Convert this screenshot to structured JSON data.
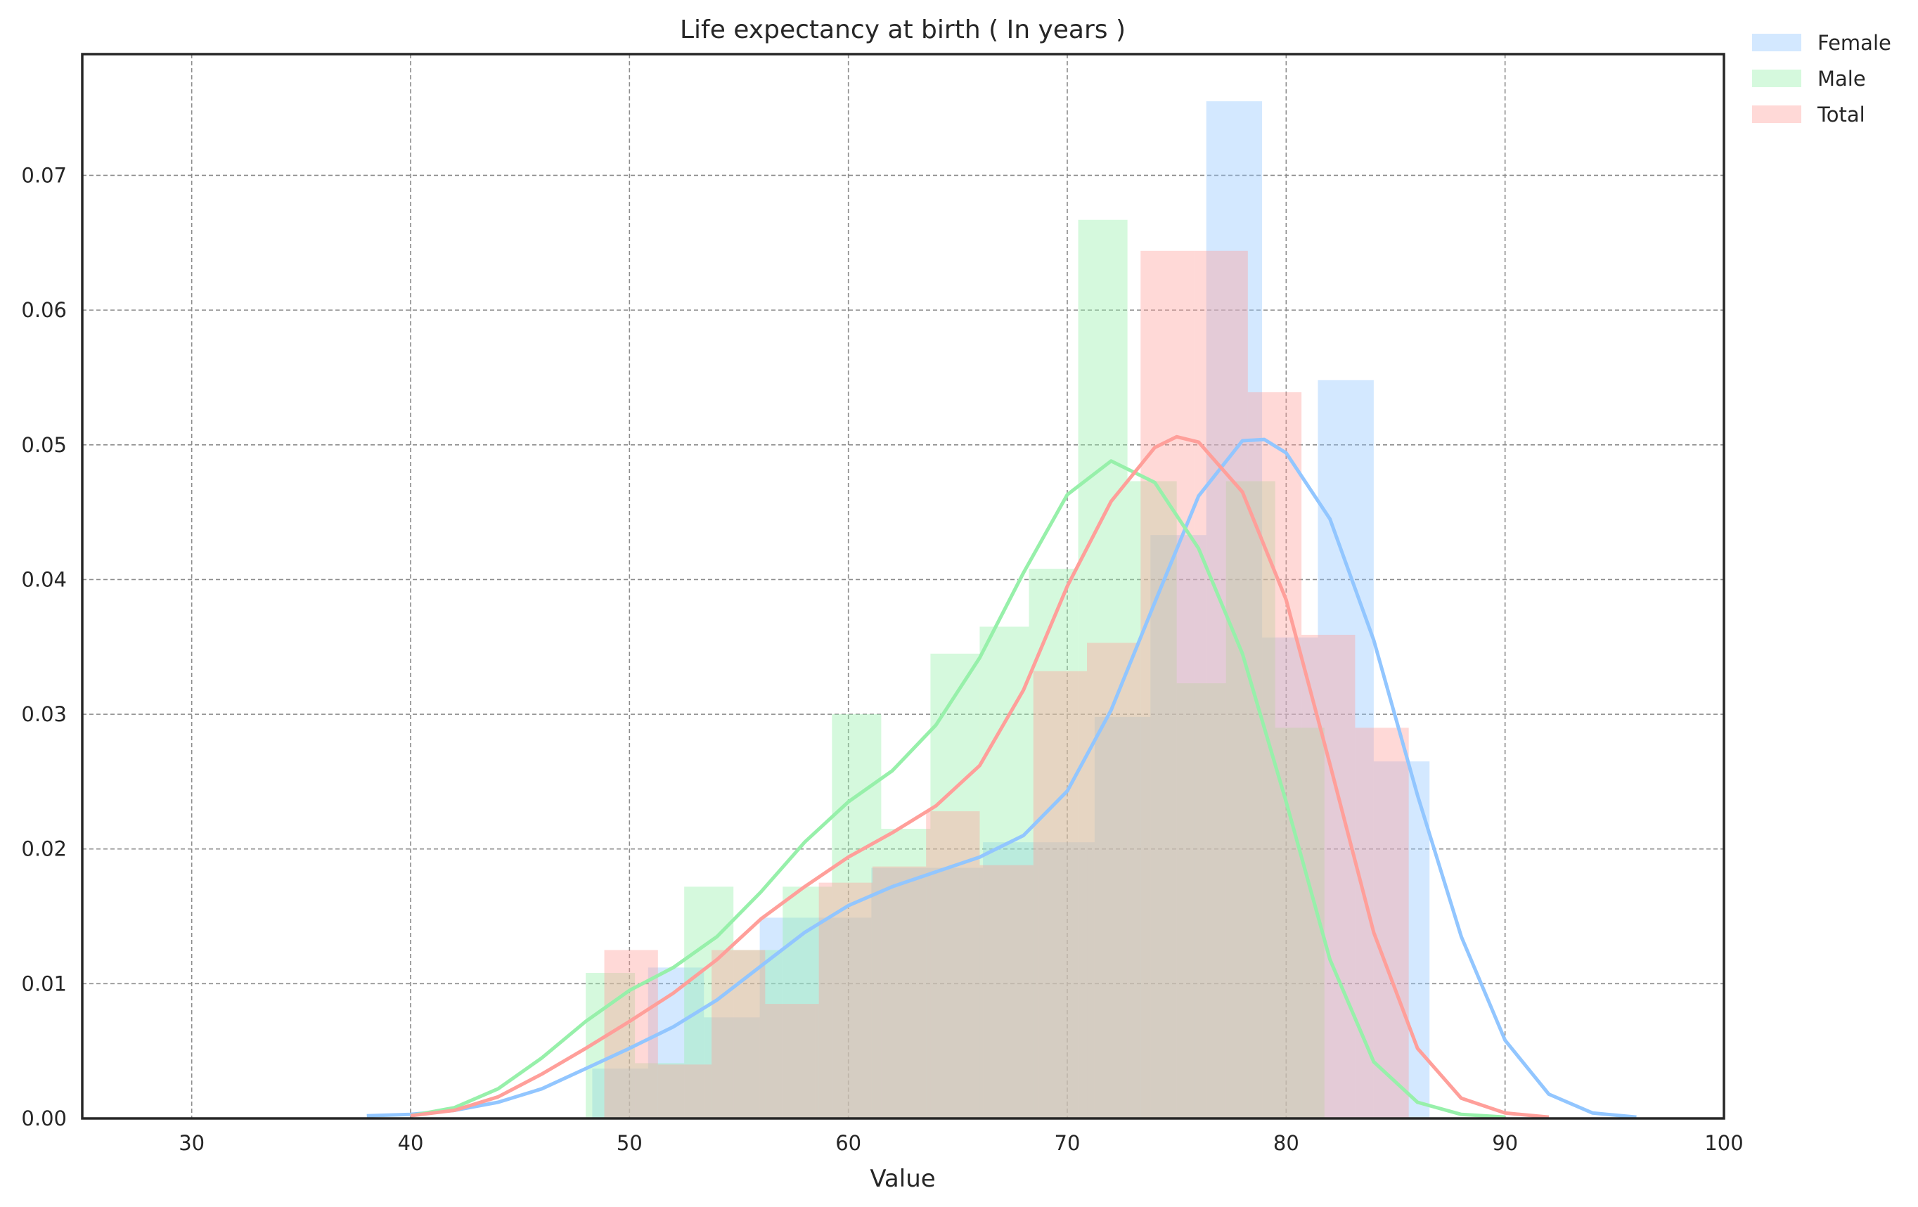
{
  "chart_data": {
    "type": "histogram+kde",
    "title": "Life expectancy at birth ( In years )",
    "xlabel": "Value",
    "ylabel": "",
    "xlim": [
      25,
      100
    ],
    "ylim": [
      0,
      0.079
    ],
    "x_ticks": [
      30,
      40,
      50,
      60,
      70,
      80,
      90,
      100
    ],
    "y_ticks": [
      0.0,
      0.01,
      0.02,
      0.03,
      0.04,
      0.05,
      0.06,
      0.07
    ],
    "y_tick_labels": [
      "0.00",
      "0.01",
      "0.02",
      "0.03",
      "0.04",
      "0.05",
      "0.06",
      "0.07"
    ],
    "grid": true,
    "legend_position": "outside-top-right",
    "series": [
      {
        "name": "Female",
        "color": "#92c6ff",
        "bar_width": 2.55,
        "bins": [
          {
            "x": 48.3,
            "height": 0.0037
          },
          {
            "x": 50.85,
            "height": 0.0112
          },
          {
            "x": 53.4,
            "height": 0.0075
          },
          {
            "x": 55.95,
            "height": 0.0149
          },
          {
            "x": 58.5,
            "height": 0.0149
          },
          {
            "x": 61.05,
            "height": 0.0186
          },
          {
            "x": 63.6,
            "height": 0.0186
          },
          {
            "x": 66.15,
            "height": 0.0205
          },
          {
            "x": 68.7,
            "height": 0.0205
          },
          {
            "x": 71.25,
            "height": 0.0298
          },
          {
            "x": 73.8,
            "height": 0.0433
          },
          {
            "x": 76.35,
            "height": 0.0755
          },
          {
            "x": 78.9,
            "height": 0.0357
          },
          {
            "x": 81.45,
            "height": 0.0548
          },
          {
            "x": 84.0,
            "height": 0.0265
          }
        ],
        "kde": [
          [
            38,
            0.0002
          ],
          [
            40,
            0.0003
          ],
          [
            42,
            0.0006
          ],
          [
            44,
            0.0012
          ],
          [
            46,
            0.0022
          ],
          [
            48,
            0.0037
          ],
          [
            50,
            0.0052
          ],
          [
            52,
            0.0068
          ],
          [
            54,
            0.0088
          ],
          [
            56,
            0.0113
          ],
          [
            58,
            0.0138
          ],
          [
            60,
            0.0158
          ],
          [
            62,
            0.0172
          ],
          [
            64,
            0.0183
          ],
          [
            66,
            0.0194
          ],
          [
            68,
            0.021
          ],
          [
            70,
            0.0243
          ],
          [
            72,
            0.0303
          ],
          [
            74,
            0.0383
          ],
          [
            76,
            0.0462
          ],
          [
            78,
            0.0503
          ],
          [
            79,
            0.0504
          ],
          [
            80,
            0.0494
          ],
          [
            82,
            0.0445
          ],
          [
            84,
            0.0355
          ],
          [
            86,
            0.024
          ],
          [
            88,
            0.0135
          ],
          [
            90,
            0.0058
          ],
          [
            92,
            0.0018
          ],
          [
            94,
            0.0004
          ],
          [
            96,
            0.0001
          ]
        ]
      },
      {
        "name": "Male",
        "color": "#97f0aa",
        "bar_width": 2.25,
        "bins": [
          {
            "x": 48.0,
            "height": 0.0108
          },
          {
            "x": 50.25,
            "height": 0.0041
          },
          {
            "x": 52.5,
            "height": 0.0172
          },
          {
            "x": 54.75,
            "height": 0.0125
          },
          {
            "x": 57.0,
            "height": 0.0172
          },
          {
            "x": 59.25,
            "height": 0.03
          },
          {
            "x": 61.5,
            "height": 0.0215
          },
          {
            "x": 63.75,
            "height": 0.0345
          },
          {
            "x": 66.0,
            "height": 0.0365
          },
          {
            "x": 68.25,
            "height": 0.0408
          },
          {
            "x": 70.5,
            "height": 0.0667
          },
          {
            "x": 72.75,
            "height": 0.0473
          },
          {
            "x": 75.0,
            "height": 0.0323
          },
          {
            "x": 77.25,
            "height": 0.0473
          },
          {
            "x": 79.5,
            "height": 0.029
          }
        ],
        "kde": [
          [
            40,
            0.0002
          ],
          [
            42,
            0.0008
          ],
          [
            44,
            0.0022
          ],
          [
            46,
            0.0045
          ],
          [
            48,
            0.0072
          ],
          [
            50,
            0.0095
          ],
          [
            52,
            0.0112
          ],
          [
            54,
            0.0135
          ],
          [
            56,
            0.0168
          ],
          [
            58,
            0.0205
          ],
          [
            60,
            0.0235
          ],
          [
            62,
            0.0258
          ],
          [
            64,
            0.0292
          ],
          [
            66,
            0.0342
          ],
          [
            68,
            0.0405
          ],
          [
            70,
            0.0463
          ],
          [
            72,
            0.0488
          ],
          [
            74,
            0.0472
          ],
          [
            76,
            0.0423
          ],
          [
            78,
            0.0345
          ],
          [
            80,
            0.0235
          ],
          [
            82,
            0.0118
          ],
          [
            84,
            0.0042
          ],
          [
            86,
            0.0012
          ],
          [
            88,
            0.0003
          ],
          [
            90,
            0.0001
          ]
        ]
      },
      {
        "name": "Total",
        "color": "#ff9f9a",
        "bar_width": 2.45,
        "bins": [
          {
            "x": 48.85,
            "height": 0.0125
          },
          {
            "x": 51.3,
            "height": 0.004
          },
          {
            "x": 53.75,
            "height": 0.0125
          },
          {
            "x": 56.2,
            "height": 0.0085
          },
          {
            "x": 58.65,
            "height": 0.0175
          },
          {
            "x": 61.1,
            "height": 0.0187
          },
          {
            "x": 63.55,
            "height": 0.0228
          },
          {
            "x": 66.0,
            "height": 0.0188
          },
          {
            "x": 68.45,
            "height": 0.0332
          },
          {
            "x": 70.9,
            "height": 0.0353
          },
          {
            "x": 73.35,
            "height": 0.0644
          },
          {
            "x": 75.8,
            "height": 0.0644
          },
          {
            "x": 78.25,
            "height": 0.0539
          },
          {
            "x": 80.7,
            "height": 0.0359
          },
          {
            "x": 83.15,
            "height": 0.029
          }
        ],
        "kde": [
          [
            40,
            0.0002
          ],
          [
            42,
            0.0006
          ],
          [
            44,
            0.0016
          ],
          [
            46,
            0.0033
          ],
          [
            48,
            0.0052
          ],
          [
            50,
            0.0072
          ],
          [
            52,
            0.0093
          ],
          [
            54,
            0.0118
          ],
          [
            56,
            0.0148
          ],
          [
            58,
            0.0172
          ],
          [
            60,
            0.0194
          ],
          [
            62,
            0.0212
          ],
          [
            64,
            0.0232
          ],
          [
            66,
            0.0262
          ],
          [
            68,
            0.0318
          ],
          [
            70,
            0.0395
          ],
          [
            72,
            0.0458
          ],
          [
            74,
            0.0498
          ],
          [
            75,
            0.0506
          ],
          [
            76,
            0.0502
          ],
          [
            78,
            0.0465
          ],
          [
            80,
            0.0385
          ],
          [
            82,
            0.0263
          ],
          [
            84,
            0.0138
          ],
          [
            86,
            0.0052
          ],
          [
            88,
            0.0015
          ],
          [
            90,
            0.0004
          ],
          [
            92,
            0.0001
          ]
        ]
      }
    ]
  }
}
